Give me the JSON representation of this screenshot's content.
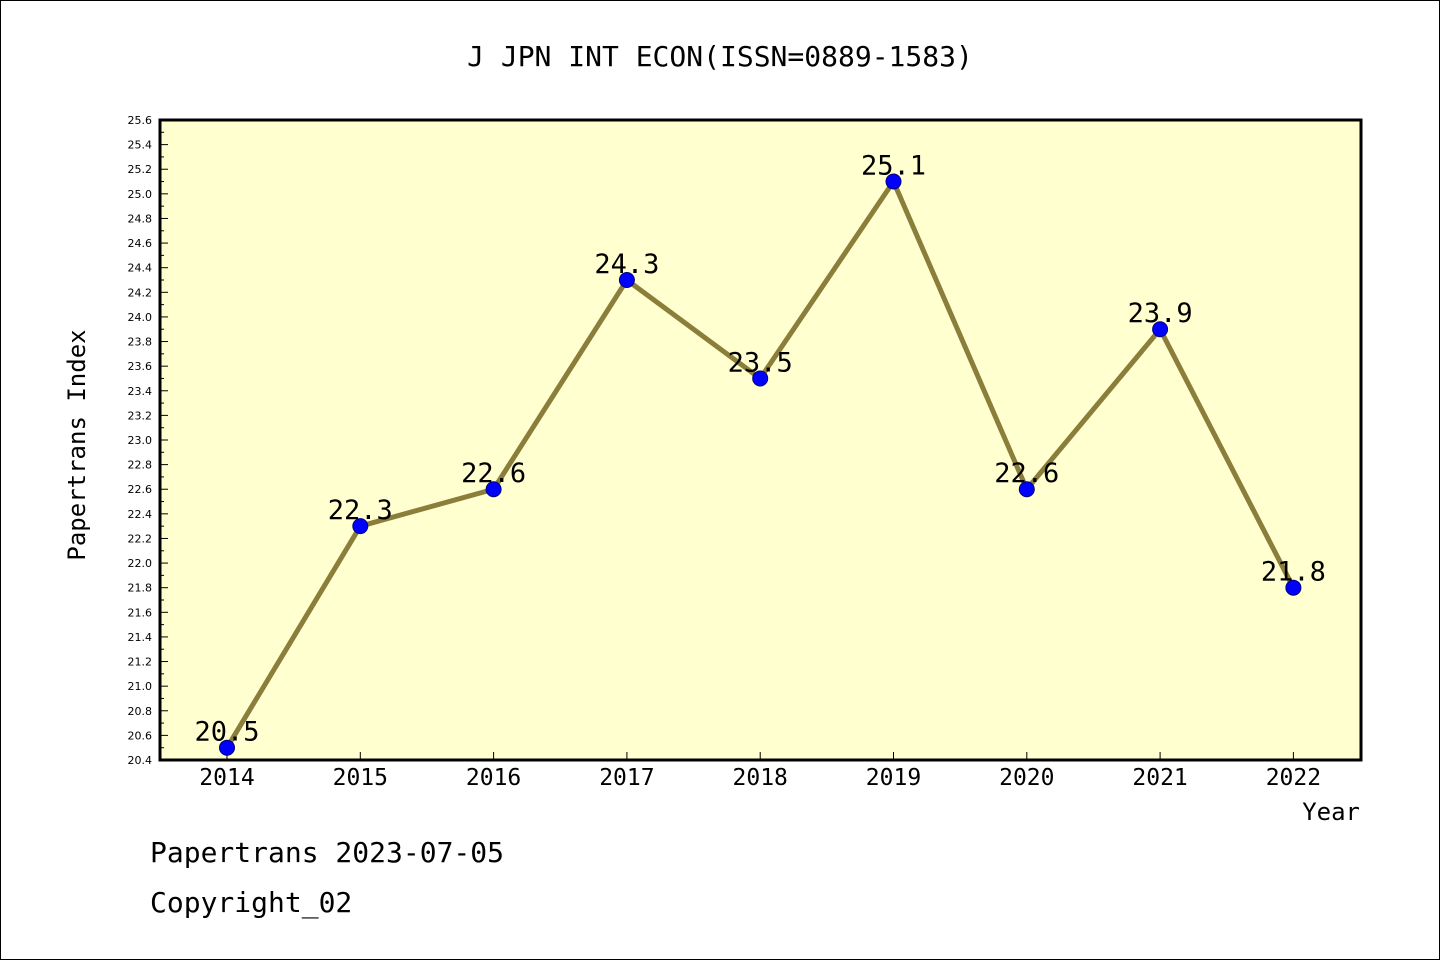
{
  "chart_data": {
    "type": "line",
    "title": "J JPN INT ECON(ISSN=0889-1583)",
    "xlabel": "Year",
    "ylabel": "Papertrans Index",
    "categories": [
      "2014",
      "2015",
      "2016",
      "2017",
      "2018",
      "2019",
      "2020",
      "2021",
      "2022"
    ],
    "series": [
      {
        "values": [
          20.5,
          22.3,
          22.6,
          24.3,
          23.5,
          25.1,
          22.6,
          23.9,
          21.8
        ],
        "labels": [
          "20.5",
          "22.3",
          "22.6",
          "24.3",
          "23.5",
          "25.1",
          "22.6",
          "23.9",
          "21.8"
        ]
      }
    ],
    "ylim": [
      20.4,
      25.6
    ],
    "ytick_labels": [
      "20.4",
      "20.6",
      "20.8",
      "21.0",
      "21.2",
      "21.4",
      "21.6",
      "21.8",
      "22.0",
      "22.2",
      "22.4",
      "22.6",
      "22.8",
      "23.0",
      "23.2",
      "23.4",
      "23.6",
      "23.8",
      "24.0",
      "24.2",
      "24.4",
      "24.6",
      "24.8",
      "25.0",
      "25.2",
      "25.4",
      "25.6"
    ],
    "grid": false,
    "legend": "none",
    "colors": {
      "plot_background": "#ffffd0",
      "line": "#8b7d3a",
      "marker": "#0000ff"
    }
  },
  "footer": {
    "line1": "Papertrans 2023-07-05",
    "line2": "Copyright_02"
  }
}
